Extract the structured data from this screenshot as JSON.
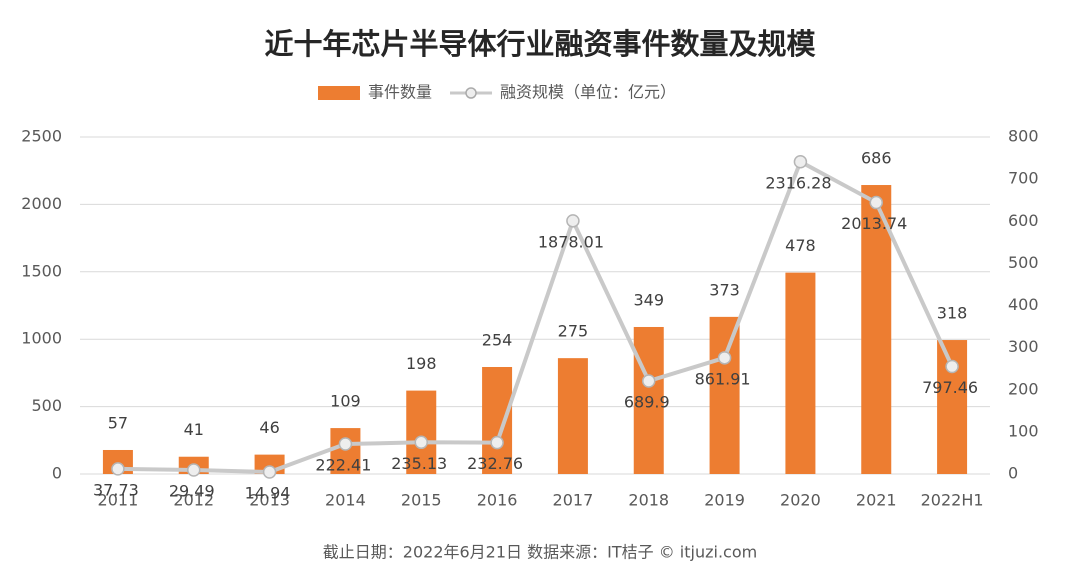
{
  "chart_data": {
    "type": "bar_line",
    "title": "近十年芯片半导体行业融资事件数量及规模",
    "footer": "截止日期：2022年6月21日   数据来源：IT桔子 © itjuzi.com",
    "categories": [
      "2011",
      "2012",
      "2013",
      "2014",
      "2015",
      "2016",
      "2017",
      "2018",
      "2019",
      "2020",
      "2021",
      "2022H1"
    ],
    "series": [
      {
        "name": "事件数量",
        "type": "bar",
        "axis": "y2",
        "color": "#ed7d31",
        "values": [
          57,
          41,
          46,
          109,
          198,
          254,
          275,
          349,
          373,
          478,
          686,
          318
        ]
      },
      {
        "name": "融资规模（单位：亿元）",
        "type": "line",
        "axis": "y",
        "color": "#c9c9c9",
        "values": [
          37.73,
          29.49,
          14.94,
          222.41,
          235.13,
          232.76,
          1878.01,
          689.9,
          861.91,
          2316.28,
          2013.74,
          797.46
        ]
      }
    ],
    "ylim": [
      0,
      2500
    ],
    "yticks": [
      0,
      500,
      1000,
      1500,
      2000,
      2500
    ],
    "y2lim": [
      0,
      800
    ],
    "y2ticks": [
      0,
      100,
      200,
      300,
      400,
      500,
      600,
      700,
      800
    ],
    "grid": true,
    "legend": "top"
  }
}
